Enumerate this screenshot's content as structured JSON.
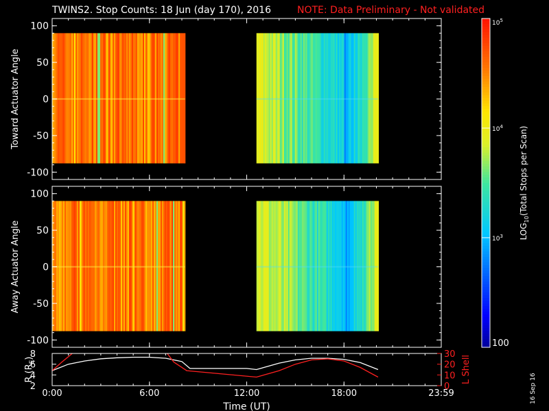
{
  "title": {
    "main": "TWINS2. Stop Counts: 18 Jun (day 170), 2016",
    "note": "NOTE: Data Preliminary - Not validated",
    "note_color": "#ff2020"
  },
  "date_stamp": "16 Sep 16",
  "chart_data": [
    {
      "type": "heatmap",
      "panel": "toward",
      "ylabel": "Toward Actuator Angle",
      "ylim": [
        -110,
        110
      ],
      "yticks": [
        100,
        50,
        0,
        -50,
        -100
      ],
      "xlim": [
        0,
        24
      ],
      "data_coverage_hours": [
        [
          0,
          8.2
        ],
        [
          12.6,
          20.1
        ]
      ],
      "angle_range": [
        -88,
        90
      ],
      "colorscale": "log",
      "value_range": [
        100,
        100000
      ],
      "tendency": "high counts (~10^4.8) during 0:00-8:10 UT; lower counts (~10^2.7-10^3.5) during 12:40-20:00 UT, rising toward the end"
    },
    {
      "type": "heatmap",
      "panel": "away",
      "ylabel": "Away Actuator Angle",
      "ylim": [
        -110,
        110
      ],
      "yticks": [
        100,
        50,
        0,
        -50,
        -100
      ],
      "xlim": [
        0,
        24
      ],
      "data_coverage_hours": [
        [
          0,
          8.2
        ],
        [
          12.6,
          20.1
        ]
      ],
      "angle_range": [
        -88,
        90
      ],
      "colorscale": "log",
      "value_range": [
        100,
        100000
      ],
      "tendency": "high counts during 0:00-8:10 UT; lower counts during 12:40-20:00 UT"
    },
    {
      "type": "line",
      "panel": "orbit",
      "xlabel": "Time (UT)",
      "xticks": [
        "0:00",
        "6:00",
        "12:00",
        "18:00",
        "23:59"
      ],
      "xtick_hours": [
        0,
        6,
        12,
        18,
        24
      ],
      "ylabel_left": "R (RE)",
      "ylabel_left_sub": "E",
      "ylim_left": [
        2,
        8
      ],
      "yticks_left": [
        2,
        4,
        6,
        8
      ],
      "ylabel_right": "L Shell",
      "ylim_right": [
        0,
        30
      ],
      "yticks_right": [
        0,
        10,
        20,
        30
      ],
      "series": [
        {
          "color": "#ffffff",
          "axis": "left",
          "x": [
            0,
            1,
            2,
            3,
            4,
            5,
            6,
            7,
            8,
            8.5,
            10,
            12,
            12.6,
            14,
            15,
            16,
            17,
            18,
            19,
            20.1
          ],
          "y": [
            4.8,
            6.0,
            6.6,
            7.0,
            7.2,
            7.3,
            7.3,
            7.1,
            6.5,
            5.2,
            5.2,
            5.2,
            5.0,
            6.2,
            6.8,
            7.1,
            7.1,
            6.9,
            6.3,
            5.0
          ]
        },
        {
          "color": "#ff2020",
          "axis": "right",
          "x": [
            0,
            0.6,
            1.4,
            7.0,
            7.5,
            8.3,
            12.6,
            14,
            15,
            16,
            17,
            18,
            19,
            20.1
          ],
          "y": [
            14,
            22,
            32,
            32,
            22,
            14,
            8,
            14,
            20,
            24,
            25,
            23,
            17,
            8
          ]
        }
      ]
    }
  ],
  "colorbar": {
    "label": "LOG10(Total Stops per Scan)",
    "label_base": "LOG",
    "label_sub": "10",
    "label_rest": "(Total Stops per Scan)",
    "ticks": [
      {
        "base": "10",
        "exp": "5",
        "value": 100000
      },
      {
        "base": "10",
        "exp": "4",
        "value": 10000
      },
      {
        "base": "10",
        "exp": "3",
        "value": 1000
      },
      {
        "plain": "100",
        "value": 100
      }
    ]
  }
}
